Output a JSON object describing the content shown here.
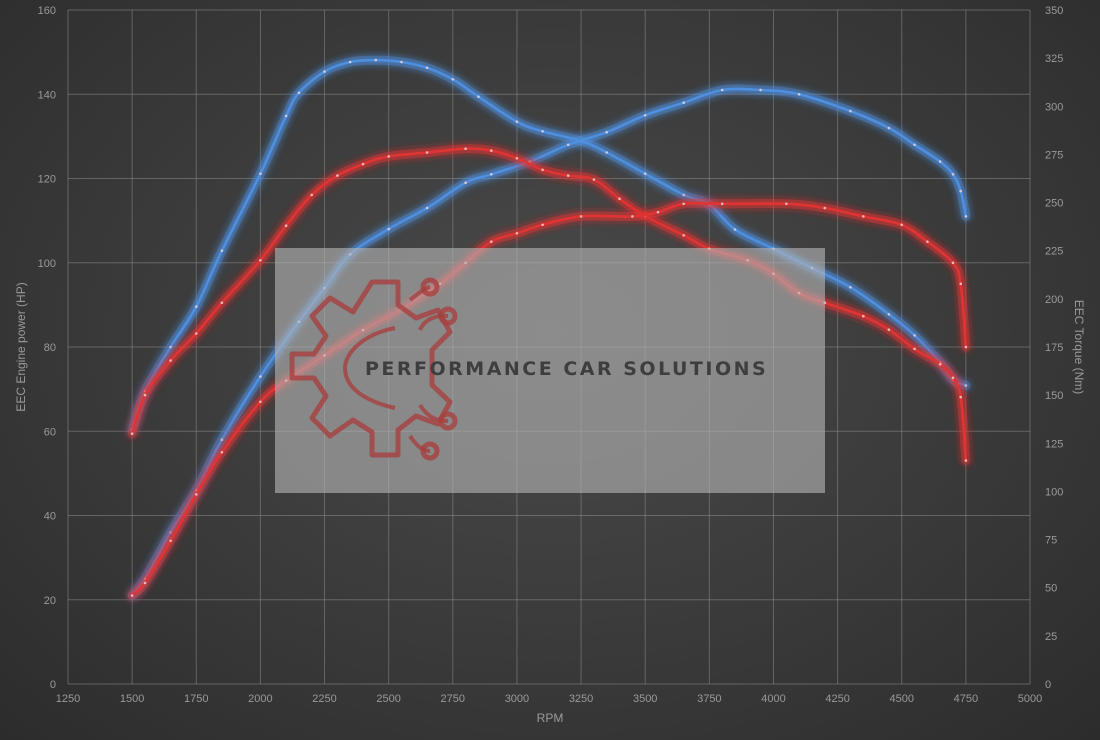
{
  "chart_data": {
    "type": "line",
    "xlabel": "RPM",
    "ylabel_left": "EEC Engine power (HP)",
    "ylabel_right": "EEC Torque (Nm)",
    "xlim": [
      1250,
      5000
    ],
    "ylim_left": [
      0,
      160
    ],
    "ylim_right": [
      0,
      350
    ],
    "x_ticks": [
      1250,
      1500,
      1750,
      2000,
      2250,
      2500,
      2750,
      3000,
      3250,
      3500,
      3750,
      4000,
      4250,
      4500,
      4750,
      5000
    ],
    "y_ticks_left": [
      0,
      20,
      40,
      60,
      80,
      100,
      120,
      140,
      160
    ],
    "y_ticks_right": [
      0,
      25,
      50,
      75,
      100,
      125,
      150,
      175,
      200,
      225,
      250,
      275,
      300,
      325,
      350
    ],
    "grid": true,
    "colors": {
      "tuned": "#4f8fe0",
      "stock": "#e03434"
    },
    "series": [
      {
        "color_key": "tuned",
        "axis": "right",
        "points": [
          [
            1500,
            132
          ],
          [
            1550,
            152
          ],
          [
            1650,
            175
          ],
          [
            1750,
            196
          ],
          [
            1850,
            225
          ],
          [
            2000,
            265
          ],
          [
            2100,
            295
          ],
          [
            2150,
            307
          ],
          [
            2250,
            318
          ],
          [
            2350,
            323
          ],
          [
            2450,
            324
          ],
          [
            2550,
            323
          ],
          [
            2650,
            320
          ],
          [
            2750,
            314
          ],
          [
            2850,
            305
          ],
          [
            3000,
            292
          ],
          [
            3100,
            287
          ],
          [
            3250,
            282
          ],
          [
            3350,
            276
          ],
          [
            3500,
            265
          ],
          [
            3650,
            254
          ],
          [
            3750,
            249
          ],
          [
            3850,
            236
          ],
          [
            4000,
            226
          ],
          [
            4150,
            216
          ],
          [
            4300,
            206
          ],
          [
            4450,
            192
          ],
          [
            4550,
            181
          ],
          [
            4650,
            167
          ],
          [
            4700,
            158
          ],
          [
            4750,
            155
          ]
        ]
      },
      {
        "color_key": "tuned",
        "axis": "left",
        "points": [
          [
            1500,
            21
          ],
          [
            1550,
            25
          ],
          [
            1650,
            36
          ],
          [
            1750,
            46
          ],
          [
            1850,
            58
          ],
          [
            2000,
            73
          ],
          [
            2150,
            86
          ],
          [
            2250,
            94
          ],
          [
            2350,
            102
          ],
          [
            2500,
            108
          ],
          [
            2650,
            113
          ],
          [
            2800,
            119
          ],
          [
            2900,
            121
          ],
          [
            3050,
            124
          ],
          [
            3200,
            128
          ],
          [
            3350,
            131
          ],
          [
            3500,
            135
          ],
          [
            3650,
            138
          ],
          [
            3800,
            141
          ],
          [
            3950,
            141
          ],
          [
            4100,
            140
          ],
          [
            4300,
            136
          ],
          [
            4450,
            132
          ],
          [
            4550,
            128
          ],
          [
            4650,
            124
          ],
          [
            4700,
            121
          ],
          [
            4730,
            117
          ],
          [
            4750,
            111
          ]
        ]
      },
      {
        "color_key": "stock",
        "axis": "right",
        "points": [
          [
            1500,
            130
          ],
          [
            1550,
            150
          ],
          [
            1650,
            168
          ],
          [
            1750,
            182
          ],
          [
            1850,
            198
          ],
          [
            2000,
            220
          ],
          [
            2100,
            238
          ],
          [
            2200,
            254
          ],
          [
            2300,
            264
          ],
          [
            2400,
            270
          ],
          [
            2500,
            274
          ],
          [
            2650,
            276
          ],
          [
            2800,
            278
          ],
          [
            2900,
            277
          ],
          [
            3000,
            273
          ],
          [
            3100,
            267
          ],
          [
            3200,
            264
          ],
          [
            3300,
            262
          ],
          [
            3400,
            252
          ],
          [
            3500,
            243
          ],
          [
            3650,
            233
          ],
          [
            3750,
            226
          ],
          [
            3900,
            220
          ],
          [
            4000,
            213
          ],
          [
            4100,
            203
          ],
          [
            4200,
            198
          ],
          [
            4350,
            191
          ],
          [
            4450,
            184
          ],
          [
            4550,
            174
          ],
          [
            4650,
            166
          ],
          [
            4700,
            159
          ],
          [
            4730,
            149
          ],
          [
            4750,
            116
          ]
        ]
      },
      {
        "color_key": "stock",
        "axis": "left",
        "points": [
          [
            1500,
            21
          ],
          [
            1550,
            24
          ],
          [
            1650,
            34
          ],
          [
            1750,
            45
          ],
          [
            1850,
            55
          ],
          [
            2000,
            67
          ],
          [
            2100,
            72
          ],
          [
            2250,
            78
          ],
          [
            2400,
            84
          ],
          [
            2550,
            89
          ],
          [
            2700,
            95
          ],
          [
            2800,
            100
          ],
          [
            2900,
            105
          ],
          [
            3000,
            107
          ],
          [
            3100,
            109
          ],
          [
            3250,
            111
          ],
          [
            3450,
            111
          ],
          [
            3550,
            112
          ],
          [
            3650,
            114
          ],
          [
            3800,
            114
          ],
          [
            4050,
            114
          ],
          [
            4200,
            113
          ],
          [
            4350,
            111
          ],
          [
            4500,
            109
          ],
          [
            4600,
            105
          ],
          [
            4700,
            100
          ],
          [
            4730,
            95
          ],
          [
            4750,
            80
          ]
        ]
      }
    ],
    "watermark": {
      "text": "PERFORMANCE CAR SOLUTIONS"
    }
  }
}
